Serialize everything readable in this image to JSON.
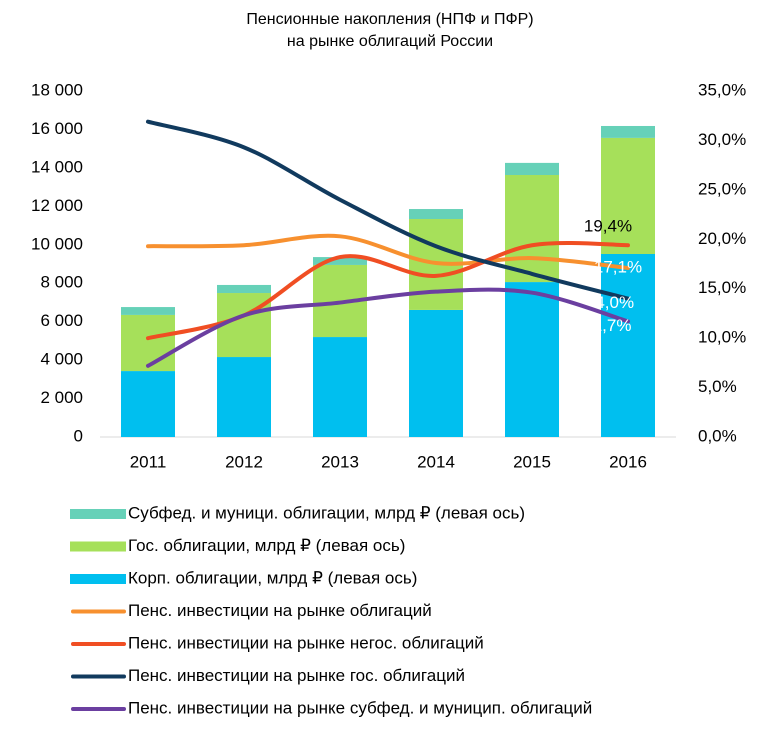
{
  "chart_data": {
    "type": "bar",
    "title": [
      "Пенсионные накопления (НПФ и ПФР)",
      "на рынке облигаций России"
    ],
    "categories": [
      "2011",
      "2012",
      "2013",
      "2014",
      "2015",
      "2016"
    ],
    "ylim": [
      0,
      18000
    ],
    "yticks": [
      0,
      {
        "value": 2000,
        "label": "2 000"
      },
      {
        "value": 4000,
        "label": "4 000"
      },
      {
        "value": 6000,
        "label": "6 000"
      },
      {
        "value": 8000,
        "label": "8 000"
      },
      {
        "value": 10000,
        "label": "10 000"
      },
      {
        "value": 12000,
        "label": "12 000"
      },
      {
        "value": 14000,
        "label": "14 000"
      },
      {
        "value": 16000,
        "label": "16 000"
      },
      {
        "value": 18000,
        "label": "18 000"
      }
    ],
    "y2lim": [
      0,
      35
    ],
    "y2ticks": [
      {
        "value": 0,
        "label": "0,0%"
      },
      {
        "value": 5,
        "label": "5,0%"
      },
      {
        "value": 10,
        "label": "10,0%"
      },
      {
        "value": 15,
        "label": "15,0%"
      },
      {
        "value": 20,
        "label": "20,0%"
      },
      {
        "value": 25,
        "label": "25,0%"
      },
      {
        "value": 30,
        "label": "30,0%"
      },
      {
        "value": 35,
        "label": "35,0%"
      }
    ],
    "series": [
      {
        "name": "Субфед. и муници. облигации, млрд ₽ (левая ось)",
        "type": "bar",
        "color": "#66d1b8",
        "values": [
          410,
          420,
          410,
          520,
          630,
          620
        ]
      },
      {
        "name": "Гос. облигации, млрд ₽ (левая ось)",
        "type": "bar",
        "color": "#a6e05a",
        "values": [
          2920,
          3330,
          3750,
          4730,
          5570,
          6040
        ]
      },
      {
        "name": "Корп. облигации, млрд ₽ (левая ось)",
        "type": "bar",
        "color": "#00bfef",
        "values": [
          3430,
          4160,
          5200,
          6610,
          8060,
          9520
        ]
      },
      {
        "name": "Пенс. инвестиции на рынке облигаций",
        "type": "line",
        "axis": "y2",
        "color": "#f7902f",
        "values": [
          19.3,
          19.4,
          20.3,
          17.6,
          18.1,
          17.1
        ],
        "value_labels": [
          null,
          null,
          null,
          null,
          null,
          "17,1%"
        ],
        "label_color": "#ffffff"
      },
      {
        "name": "Пенс. инвестиции на рынке негос. облигаций",
        "type": "line",
        "axis": "y2",
        "color": "#f04e23",
        "values": [
          10.0,
          12.3,
          18.2,
          16.3,
          19.4,
          19.4
        ],
        "value_labels": [
          null,
          null,
          null,
          null,
          null,
          "19,4%"
        ],
        "label_color": "#000000"
      },
      {
        "name": "Пенс. инвестиции на рынке гос. облигаций",
        "type": "line",
        "axis": "y2",
        "color": "#113a5e",
        "values": [
          31.9,
          29.3,
          24.0,
          19.3,
          16.5,
          14.0
        ],
        "value_labels": [
          null,
          null,
          null,
          null,
          null,
          "14,0%"
        ],
        "label_color": "#ffffff"
      },
      {
        "name": "Пенс. инвестиции на рынке субфед. и муницип. облигаций",
        "type": "line",
        "axis": "y2",
        "color": "#6b3fa0",
        "values": [
          7.2,
          12.3,
          13.6,
          14.7,
          14.6,
          11.7
        ],
        "value_labels": [
          null,
          null,
          null,
          null,
          null,
          "11,7%"
        ],
        "label_color": "#ffffff"
      }
    ]
  }
}
